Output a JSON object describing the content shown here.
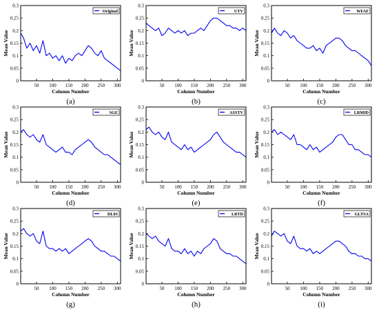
{
  "figure": {
    "line_color": "#0000ee",
    "frame_color": "#000000"
  },
  "chart_data": [
    {
      "type": "line",
      "panel_label": "(a)",
      "legend": "Original",
      "legend_position": "top-right",
      "xlabel": "Column Number",
      "ylabel": "Mean Value",
      "xlim": [
        1,
        310
      ],
      "ylim": [
        0,
        0.3
      ],
      "xticks": [
        50,
        100,
        150,
        200,
        250,
        300
      ],
      "yticks": [
        0,
        0.05,
        0.1,
        0.15,
        0.2,
        0.25,
        0.3
      ],
      "series": [
        {
          "name": "Original",
          "x": [
            1,
            10,
            20,
            30,
            40,
            50,
            60,
            70,
            80,
            90,
            100,
            110,
            120,
            130,
            140,
            150,
            160,
            170,
            180,
            190,
            200,
            210,
            220,
            230,
            240,
            250,
            260,
            270,
            280,
            290,
            300,
            310
          ],
          "y": [
            0.19,
            0.17,
            0.13,
            0.15,
            0.12,
            0.14,
            0.11,
            0.16,
            0.1,
            0.11,
            0.09,
            0.1,
            0.08,
            0.1,
            0.07,
            0.09,
            0.08,
            0.1,
            0.11,
            0.1,
            0.12,
            0.14,
            0.13,
            0.11,
            0.1,
            0.12,
            0.09,
            0.08,
            0.07,
            0.06,
            0.05,
            0.04
          ]
        }
      ]
    },
    {
      "type": "line",
      "panel_label": "(b)",
      "legend": "UTV",
      "legend_position": "top-right",
      "xlabel": "Column Number",
      "ylabel": "Mean Value",
      "xlim": [
        1,
        310
      ],
      "ylim": [
        0,
        0.3
      ],
      "xticks": [
        50,
        100,
        150,
        200,
        250,
        300
      ],
      "yticks": [
        0,
        0.05,
        0.1,
        0.15,
        0.2,
        0.25,
        0.3
      ],
      "series": [
        {
          "name": "UTV",
          "x": [
            1,
            10,
            20,
            30,
            40,
            50,
            60,
            70,
            80,
            90,
            100,
            110,
            120,
            130,
            140,
            150,
            160,
            170,
            180,
            190,
            200,
            210,
            220,
            230,
            240,
            250,
            260,
            270,
            280,
            290,
            300,
            310
          ],
          "y": [
            0.23,
            0.22,
            0.21,
            0.2,
            0.21,
            0.18,
            0.19,
            0.21,
            0.2,
            0.19,
            0.2,
            0.19,
            0.2,
            0.18,
            0.19,
            0.19,
            0.2,
            0.21,
            0.2,
            0.22,
            0.24,
            0.25,
            0.25,
            0.24,
            0.23,
            0.22,
            0.22,
            0.21,
            0.21,
            0.2,
            0.21,
            0.2
          ]
        }
      ]
    },
    {
      "type": "line",
      "panel_label": "(c)",
      "legend": "WFAF",
      "legend_position": "top-right",
      "xlabel": "Column Number",
      "ylabel": "Mean Value",
      "xlim": [
        1,
        310
      ],
      "ylim": [
        0,
        0.3
      ],
      "xticks": [
        50,
        100,
        150,
        200,
        250,
        300
      ],
      "yticks": [
        0,
        0.05,
        0.1,
        0.15,
        0.2,
        0.25,
        0.3
      ],
      "series": [
        {
          "name": "WFAF",
          "x": [
            1,
            10,
            20,
            30,
            40,
            50,
            60,
            70,
            80,
            90,
            100,
            110,
            120,
            130,
            140,
            150,
            160,
            170,
            180,
            190,
            200,
            210,
            220,
            230,
            240,
            250,
            260,
            270,
            280,
            290,
            300,
            310
          ],
          "y": [
            0.19,
            0.21,
            0.19,
            0.18,
            0.2,
            0.19,
            0.17,
            0.18,
            0.16,
            0.15,
            0.14,
            0.13,
            0.13,
            0.14,
            0.12,
            0.13,
            0.11,
            0.14,
            0.15,
            0.16,
            0.17,
            0.17,
            0.16,
            0.14,
            0.13,
            0.12,
            0.12,
            0.11,
            0.1,
            0.09,
            0.08,
            0.06
          ]
        }
      ]
    },
    {
      "type": "line",
      "panel_label": "(d)",
      "legend": "SGE",
      "legend_position": "top-right",
      "xlabel": "Column Number",
      "ylabel": "Mean Value",
      "xlim": [
        1,
        310
      ],
      "ylim": [
        0,
        0.3
      ],
      "xticks": [
        50,
        100,
        150,
        200,
        250,
        300
      ],
      "yticks": [
        0,
        0.05,
        0.1,
        0.15,
        0.2,
        0.25,
        0.3
      ],
      "series": [
        {
          "name": "SGE",
          "x": [
            1,
            10,
            20,
            30,
            40,
            50,
            60,
            70,
            80,
            90,
            100,
            110,
            120,
            130,
            140,
            150,
            160,
            170,
            180,
            190,
            200,
            210,
            220,
            230,
            240,
            250,
            260,
            270,
            280,
            290,
            300,
            310
          ],
          "y": [
            0.2,
            0.21,
            0.19,
            0.18,
            0.19,
            0.17,
            0.16,
            0.19,
            0.15,
            0.14,
            0.13,
            0.12,
            0.13,
            0.14,
            0.12,
            0.12,
            0.11,
            0.13,
            0.14,
            0.15,
            0.16,
            0.17,
            0.16,
            0.14,
            0.13,
            0.12,
            0.11,
            0.11,
            0.1,
            0.09,
            0.08,
            0.07
          ]
        }
      ]
    },
    {
      "type": "line",
      "panel_label": "(e)",
      "legend": "ASSTV",
      "legend_position": "top-right",
      "xlabel": "Column Number",
      "ylabel": "Mean Value",
      "xlim": [
        1,
        310
      ],
      "ylim": [
        0,
        0.3
      ],
      "xticks": [
        50,
        100,
        150,
        200,
        250,
        300
      ],
      "yticks": [
        0,
        0.05,
        0.1,
        0.15,
        0.2,
        0.25,
        0.3
      ],
      "series": [
        {
          "name": "ASSTV",
          "x": [
            1,
            10,
            20,
            30,
            40,
            50,
            60,
            70,
            80,
            90,
            100,
            110,
            120,
            130,
            140,
            150,
            160,
            170,
            180,
            190,
            200,
            210,
            220,
            230,
            240,
            250,
            260,
            270,
            280,
            290,
            300,
            310
          ],
          "y": [
            0.21,
            0.22,
            0.2,
            0.19,
            0.2,
            0.18,
            0.17,
            0.2,
            0.16,
            0.15,
            0.14,
            0.13,
            0.15,
            0.13,
            0.14,
            0.12,
            0.13,
            0.14,
            0.15,
            0.16,
            0.17,
            0.19,
            0.2,
            0.18,
            0.16,
            0.15,
            0.14,
            0.13,
            0.12,
            0.12,
            0.11,
            0.1
          ]
        }
      ]
    },
    {
      "type": "line",
      "panel_label": "(f)",
      "legend": "LRMID",
      "legend_position": "top-right",
      "xlabel": "Column Number",
      "ylabel": "Mean Value",
      "xlim": [
        1,
        310
      ],
      "ylim": [
        0,
        0.3
      ],
      "xticks": [
        50,
        100,
        150,
        200,
        250,
        300
      ],
      "yticks": [
        0,
        0.05,
        0.1,
        0.15,
        0.2,
        0.25,
        0.3
      ],
      "series": [
        {
          "name": "LRMID",
          "x": [
            1,
            10,
            20,
            30,
            40,
            50,
            60,
            70,
            80,
            90,
            100,
            110,
            120,
            130,
            140,
            150,
            160,
            170,
            180,
            190,
            200,
            210,
            220,
            230,
            240,
            250,
            260,
            270,
            280,
            290,
            300,
            310
          ],
          "y": [
            0.2,
            0.21,
            0.19,
            0.2,
            0.19,
            0.18,
            0.17,
            0.19,
            0.15,
            0.15,
            0.14,
            0.13,
            0.15,
            0.13,
            0.14,
            0.12,
            0.13,
            0.14,
            0.15,
            0.16,
            0.18,
            0.19,
            0.19,
            0.17,
            0.15,
            0.15,
            0.13,
            0.13,
            0.12,
            0.11,
            0.11,
            0.1
          ]
        }
      ]
    },
    {
      "type": "line",
      "panel_label": "(g)",
      "legend": "DL0S",
      "legend_position": "top-right",
      "xlabel": "Column Number",
      "ylabel": "Mean Value",
      "xlim": [
        1,
        310
      ],
      "ylim": [
        0,
        0.3
      ],
      "xticks": [
        50,
        100,
        150,
        200,
        250,
        300
      ],
      "yticks": [
        0,
        0.05,
        0.1,
        0.15,
        0.2,
        0.25,
        0.3
      ],
      "series": [
        {
          "name": "DL0S",
          "x": [
            1,
            10,
            20,
            30,
            40,
            50,
            60,
            70,
            80,
            90,
            100,
            110,
            120,
            130,
            140,
            150,
            160,
            170,
            180,
            190,
            200,
            210,
            220,
            230,
            240,
            250,
            260,
            270,
            280,
            290,
            300,
            310
          ],
          "y": [
            0.21,
            0.22,
            0.2,
            0.19,
            0.2,
            0.17,
            0.16,
            0.21,
            0.15,
            0.14,
            0.14,
            0.13,
            0.14,
            0.13,
            0.14,
            0.12,
            0.13,
            0.14,
            0.15,
            0.16,
            0.17,
            0.18,
            0.17,
            0.15,
            0.14,
            0.13,
            0.13,
            0.12,
            0.11,
            0.11,
            0.1,
            0.09
          ]
        }
      ]
    },
    {
      "type": "line",
      "panel_label": "(h)",
      "legend": "LRTD",
      "legend_position": "top-right",
      "xlabel": "Column Number",
      "ylabel": "Mean Value",
      "xlim": [
        1,
        310
      ],
      "ylim": [
        0,
        0.3
      ],
      "xticks": [
        50,
        100,
        150,
        200,
        250,
        300
      ],
      "yticks": [
        0,
        0.05,
        0.1,
        0.15,
        0.2,
        0.25,
        0.3
      ],
      "series": [
        {
          "name": "LRTD",
          "x": [
            1,
            10,
            20,
            30,
            40,
            50,
            60,
            70,
            80,
            90,
            100,
            110,
            120,
            130,
            140,
            150,
            160,
            170,
            180,
            190,
            200,
            210,
            220,
            230,
            240,
            250,
            260,
            270,
            280,
            290,
            300,
            310
          ],
          "y": [
            0.2,
            0.19,
            0.18,
            0.19,
            0.17,
            0.16,
            0.15,
            0.18,
            0.14,
            0.13,
            0.13,
            0.12,
            0.14,
            0.12,
            0.13,
            0.11,
            0.13,
            0.12,
            0.14,
            0.15,
            0.16,
            0.18,
            0.17,
            0.14,
            0.13,
            0.12,
            0.12,
            0.11,
            0.11,
            0.1,
            0.09,
            0.08
          ]
        }
      ]
    },
    {
      "type": "line",
      "panel_label": "(i)",
      "legend": "GLTSA",
      "legend_position": "top-right",
      "xlabel": "Column Number",
      "ylabel": "Mean Value",
      "xlim": [
        1,
        310
      ],
      "ylim": [
        0,
        0.3
      ],
      "xticks": [
        50,
        100,
        150,
        200,
        250,
        300
      ],
      "yticks": [
        0,
        0.05,
        0.1,
        0.15,
        0.2,
        0.25,
        0.3
      ],
      "series": [
        {
          "name": "GLTSA",
          "x": [
            1,
            10,
            20,
            30,
            40,
            50,
            60,
            70,
            80,
            90,
            100,
            110,
            120,
            130,
            140,
            150,
            160,
            170,
            180,
            190,
            200,
            210,
            220,
            230,
            240,
            250,
            260,
            270,
            280,
            290,
            300,
            310
          ],
          "y": [
            0.19,
            0.21,
            0.2,
            0.19,
            0.2,
            0.17,
            0.16,
            0.19,
            0.15,
            0.14,
            0.14,
            0.13,
            0.14,
            0.12,
            0.13,
            0.12,
            0.13,
            0.14,
            0.15,
            0.16,
            0.17,
            0.17,
            0.16,
            0.15,
            0.13,
            0.12,
            0.12,
            0.11,
            0.11,
            0.1,
            0.1,
            0.09
          ]
        }
      ]
    }
  ]
}
